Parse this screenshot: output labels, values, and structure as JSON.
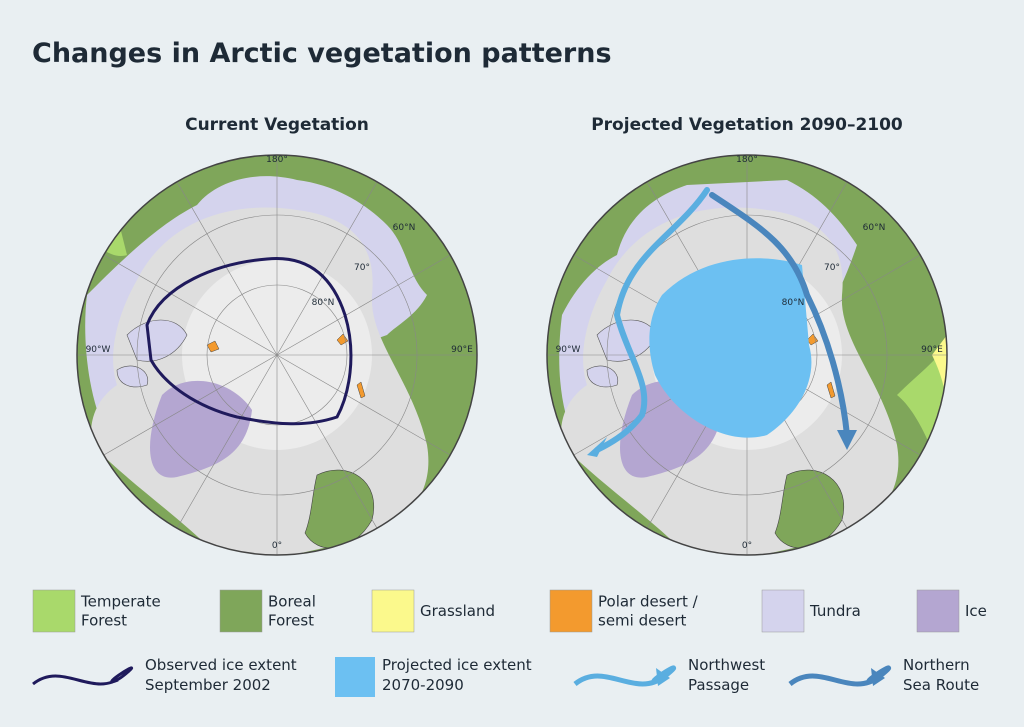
{
  "title": "Changes in Arctic vegetation patterns",
  "maps": [
    {
      "title": "Current Vegetation",
      "labels": [
        "180°",
        "60°N",
        "70°",
        "80°N",
        "90°W",
        "90°E",
        "0°"
      ]
    },
    {
      "title": "Projected Vegetation 2090–2100",
      "labels": [
        "180°",
        "60°N",
        "70°",
        "80°N",
        "90°W",
        "90°E",
        "0°"
      ]
    }
  ],
  "legend": {
    "vegetation": [
      {
        "label": [
          "Temperate",
          "Forest"
        ],
        "color": "#a9d96b"
      },
      {
        "label": [
          "Boreal",
          "Forest"
        ],
        "color": "#7fa65a"
      },
      {
        "label": [
          "Grassland"
        ],
        "color": "#fbf98c"
      },
      {
        "label": [
          "Polar desert /",
          "semi desert"
        ],
        "color": "#f39a2e"
      },
      {
        "label": [
          "Tundra"
        ],
        "color": "#d4d3ed"
      },
      {
        "label": [
          "Ice"
        ],
        "color": "#b4a6d1"
      }
    ],
    "lines": [
      {
        "label": [
          "Observed ice extent",
          "September 2002"
        ],
        "color": "#1f1a5c"
      },
      {
        "label": [
          "Projected ice extent",
          "2070-2090"
        ],
        "color": "#6cc0f2"
      },
      {
        "label": [
          "Northwest",
          "Passage"
        ],
        "color": "#5aaee0"
      },
      {
        "label": [
          "Northern",
          "Sea Route"
        ],
        "color": "#4a86bd"
      }
    ]
  }
}
